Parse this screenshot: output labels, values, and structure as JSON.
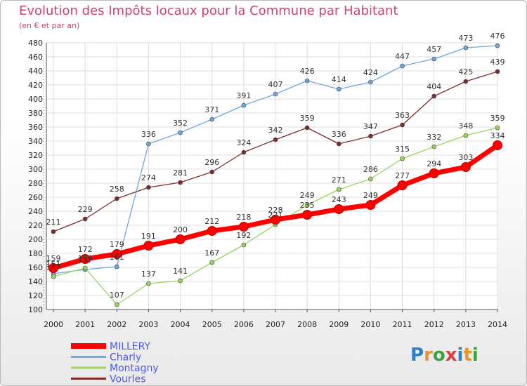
{
  "title": "Evolution des Impôts locaux pour la Commune par Habitant",
  "subtitle": "(en € et par an)",
  "logo": {
    "letters": [
      "P",
      "r",
      "o",
      "x",
      "i",
      "t",
      "i"
    ],
    "colors": [
      "#2f7fc7",
      "#e8942c",
      "#3aa142",
      "#e23b3b",
      "#2f7fc7",
      "#e8942c",
      "#3aa142"
    ]
  },
  "chart_data": {
    "type": "line",
    "x": [
      "2000",
      "2001",
      "2002",
      "2003",
      "2004",
      "2005",
      "2006",
      "2007",
      "2008",
      "2009",
      "2010",
      "2011",
      "2012",
      "2013",
      "2014"
    ],
    "ylim": [
      100,
      480
    ],
    "yticks": [
      100,
      120,
      140,
      160,
      180,
      200,
      220,
      240,
      260,
      280,
      300,
      320,
      340,
      360,
      380,
      400,
      420,
      440,
      460,
      480
    ],
    "grid": true,
    "legend_position": "bottom-left",
    "series": [
      {
        "name": "MILLERY",
        "color": "#ff0000",
        "values": [
          159,
          172,
          179,
          191,
          200,
          212,
          218,
          228,
          235,
          243,
          249,
          277,
          294,
          303,
          334
        ]
      },
      {
        "name": "Charly",
        "color": "#6fa8dc",
        "values": [
          151,
          157,
          161,
          336,
          352,
          371,
          391,
          407,
          426,
          414,
          424,
          447,
          457,
          473,
          476
        ]
      },
      {
        "name": "Montagny",
        "color": "#99d55f",
        "values": [
          147,
          159,
          107,
          137,
          141,
          167,
          192,
          221,
          249,
          271,
          286,
          315,
          332,
          348,
          359
        ]
      },
      {
        "name": "Vourles",
        "color": "#7b2c2c",
        "values": [
          211,
          229,
          258,
          274,
          281,
          296,
          324,
          342,
          359,
          336,
          347,
          363,
          404,
          425,
          439
        ]
      }
    ]
  }
}
